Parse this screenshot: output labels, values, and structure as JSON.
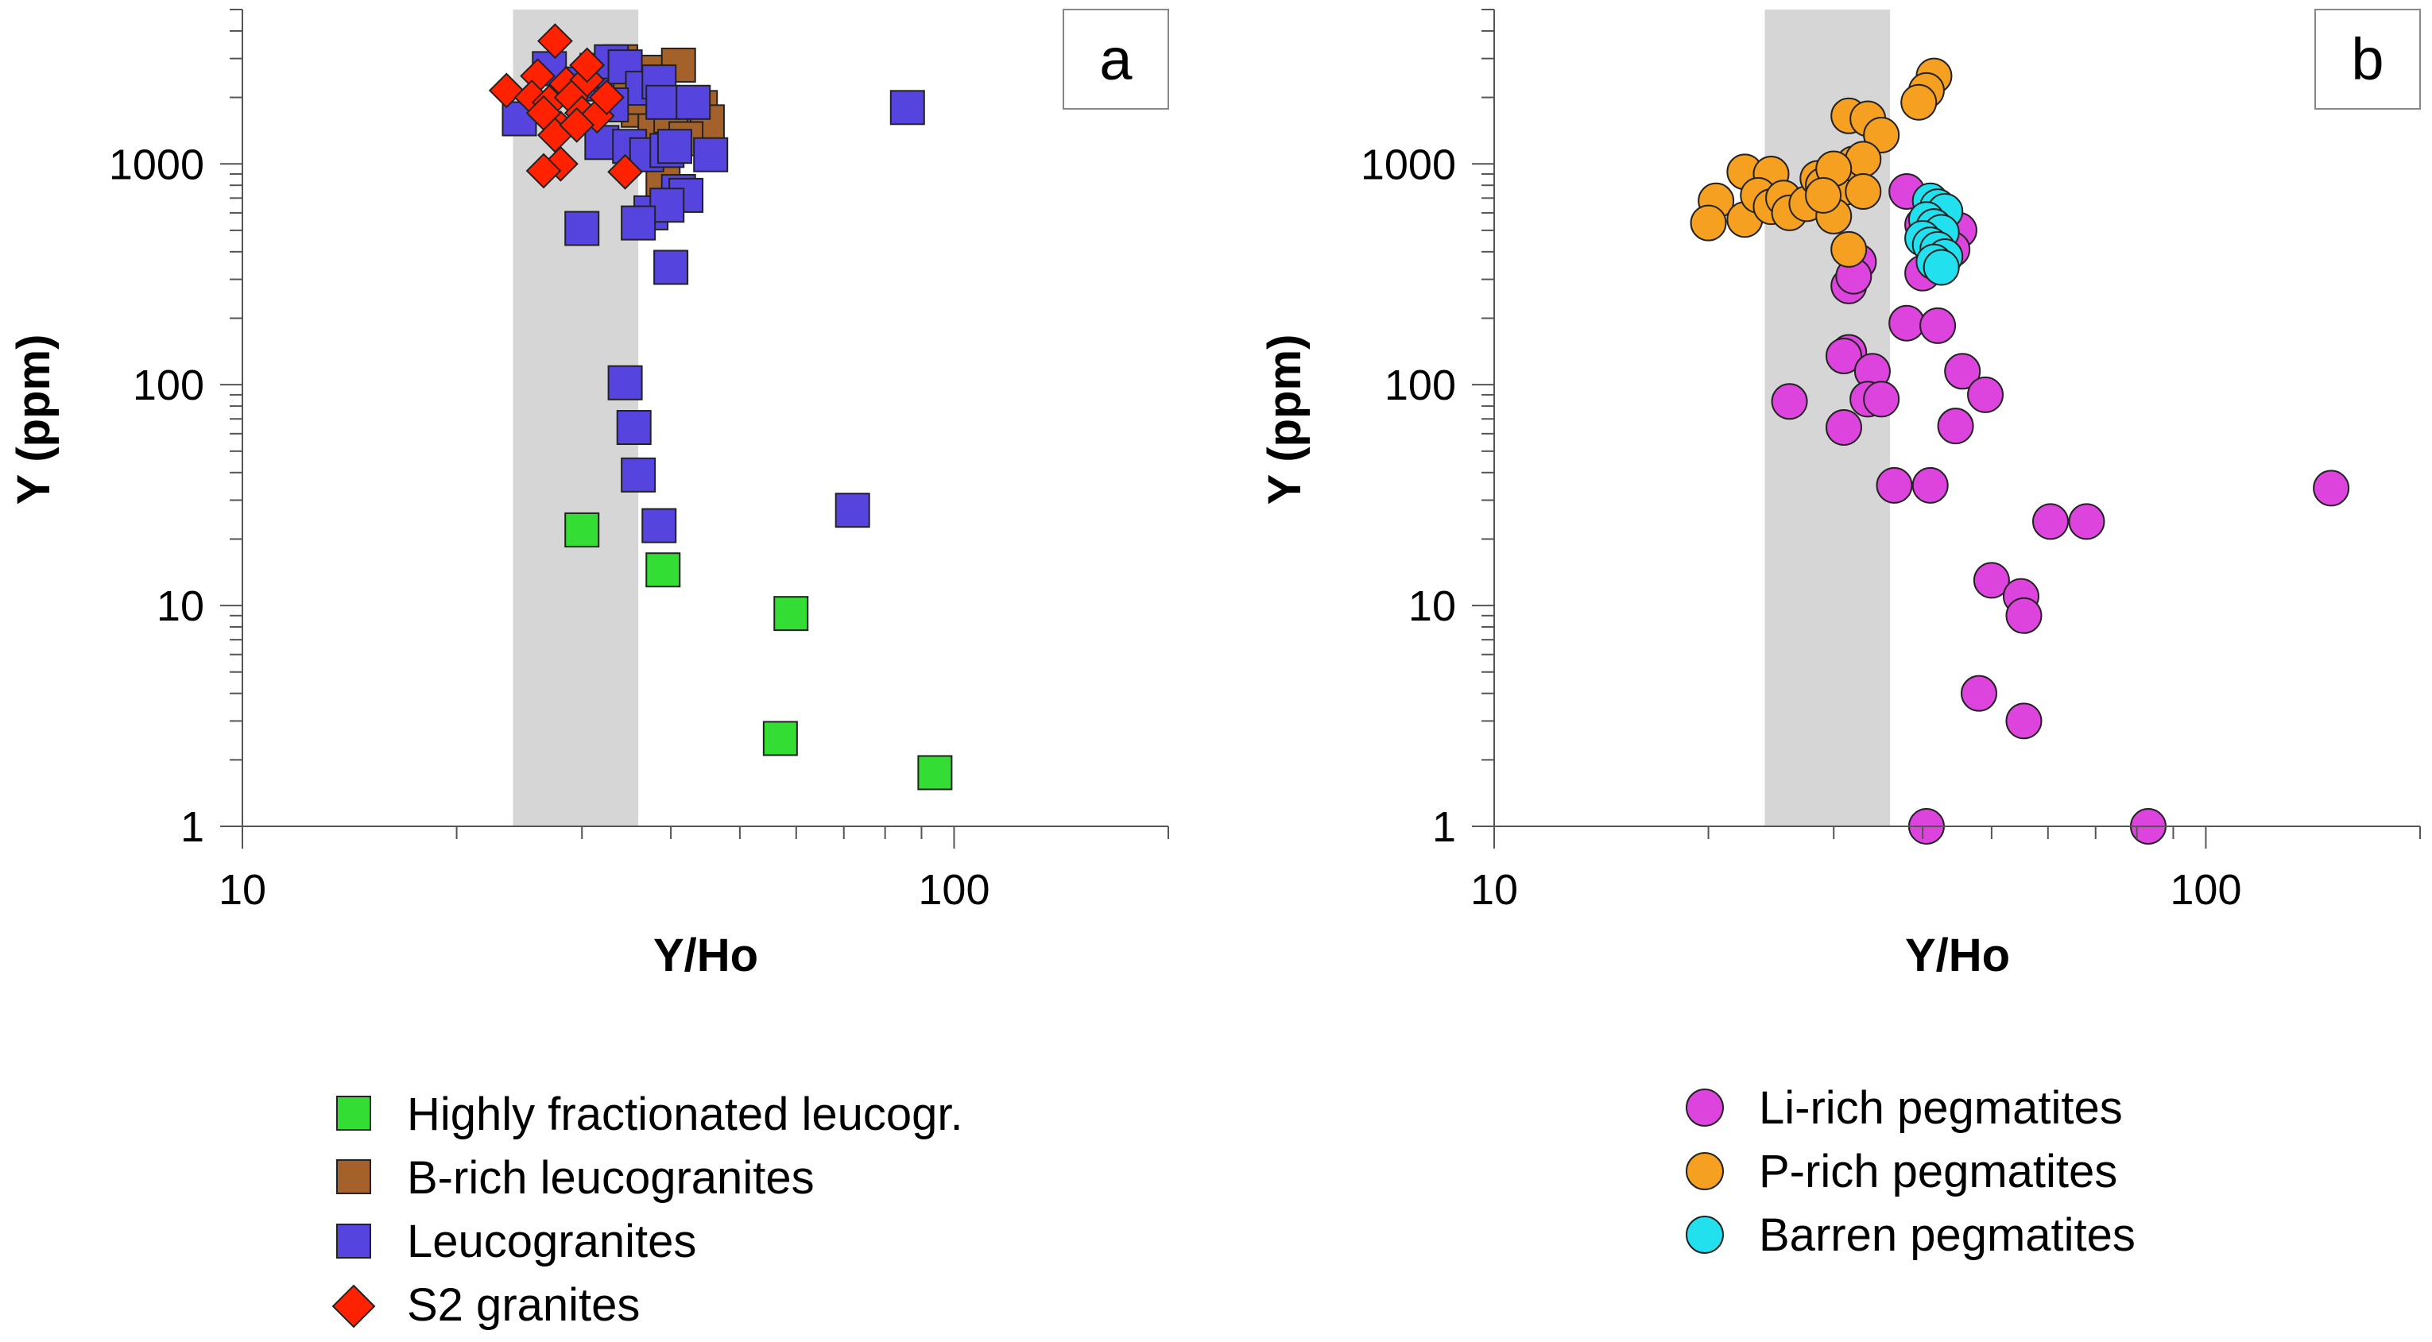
{
  "chart_data": [
    {
      "type": "scatter",
      "panel_label": "a",
      "xscale": "log",
      "yscale": "log",
      "xlabel": "Y/Ho",
      "ylabel": "Y (ppm)",
      "xlim": [
        10,
        200
      ],
      "ylim": [
        1,
        5000
      ],
      "xticks": [
        10,
        100
      ],
      "xtick_labels": [
        "10",
        "100"
      ],
      "yticks": [
        1,
        10,
        100,
        1000
      ],
      "ytick_labels": [
        "1",
        "10",
        "100",
        "1000"
      ],
      "shaded_band": {
        "x": [
          24,
          36
        ],
        "color": "#d6d6d6"
      },
      "series": [
        {
          "name": "Highly fractionated leucogr.",
          "marker": "square",
          "color": "#33dd33",
          "points": [
            [
              30,
              22
            ],
            [
              39,
              14.5
            ],
            [
              59,
              9.2
            ],
            [
              57,
              2.5
            ],
            [
              94,
              1.75
            ]
          ]
        },
        {
          "name": "B-rich leucogranites",
          "marker": "square",
          "color": "#a5612a",
          "points": [
            [
              34,
              2900
            ],
            [
              37,
              2600
            ],
            [
              41,
              2800
            ],
            [
              44,
              1800
            ],
            [
              45,
              1550
            ],
            [
              36,
              1750
            ],
            [
              38,
              1450
            ],
            [
              40,
              1650
            ],
            [
              33,
              2300
            ],
            [
              42,
              1300
            ],
            [
              39,
              850
            ],
            [
              35,
              2000
            ]
          ]
        },
        {
          "name": "Leucogranites",
          "marker": "square",
          "color": "#5544dd",
          "points": [
            [
              24.5,
              1600
            ],
            [
              27,
              2700
            ],
            [
              30,
              2300
            ],
            [
              31.5,
              2650
            ],
            [
              33,
              2900
            ],
            [
              34.5,
              2750
            ],
            [
              36.5,
              2200
            ],
            [
              38.5,
              2350
            ],
            [
              39,
              1900
            ],
            [
              43,
              1900
            ],
            [
              33,
              1850
            ],
            [
              32,
              1250
            ],
            [
              35,
              1200
            ],
            [
              37,
              1100
            ],
            [
              39.5,
              1150
            ],
            [
              40.5,
              1200
            ],
            [
              45.5,
              1100
            ],
            [
              41,
              750
            ],
            [
              42,
              720
            ],
            [
              37.5,
              600
            ],
            [
              39.5,
              650
            ],
            [
              30,
              510
            ],
            [
              36,
              540
            ],
            [
              40,
              340
            ],
            [
              86,
              1800
            ],
            [
              34.5,
              102
            ],
            [
              35.5,
              64
            ],
            [
              36,
              39
            ],
            [
              38.5,
              23
            ],
            [
              72,
              27
            ]
          ]
        },
        {
          "name": "S2 granites",
          "marker": "diamond",
          "color": "#ff2200",
          "points": [
            [
              23.5,
              2150
            ],
            [
              27.5,
              3600
            ],
            [
              26,
              2500
            ],
            [
              28.5,
              2300
            ],
            [
              30.5,
              2400
            ],
            [
              25.5,
              2000
            ],
            [
              27,
              1900
            ],
            [
              29,
              2000
            ],
            [
              30,
              1700
            ],
            [
              31.5,
              1650
            ],
            [
              28,
              1450
            ],
            [
              30.5,
              2800
            ],
            [
              26.5,
              1700
            ],
            [
              32.5,
              2000
            ],
            [
              27.5,
              1350
            ],
            [
              29.5,
              1500
            ],
            [
              28,
              1000
            ],
            [
              26.5,
              930
            ],
            [
              34.5,
              920
            ]
          ]
        }
      ]
    },
    {
      "type": "scatter",
      "panel_label": "b",
      "xscale": "log",
      "yscale": "log",
      "xlabel": "Y/Ho",
      "ylabel": "Y (ppm)",
      "xlim": [
        10,
        200
      ],
      "ylim": [
        1,
        5000
      ],
      "xticks": [
        10,
        100
      ],
      "xtick_labels": [
        "10",
        "100"
      ],
      "yticks": [
        1,
        10,
        100,
        1000
      ],
      "ytick_labels": [
        "1",
        "10",
        "100",
        "1000"
      ],
      "shaded_band": {
        "x": [
          24,
          36
        ],
        "color": "#d6d6d6"
      },
      "series": [
        {
          "name": "Li-rich pegmatites",
          "marker": "circle",
          "color": "#dd44dd",
          "points": [
            [
              38,
              750
            ],
            [
              40,
              530
            ],
            [
              45,
              500
            ],
            [
              44,
              410
            ],
            [
              40,
              320
            ],
            [
              32.5,
              360
            ],
            [
              31.5,
              280
            ],
            [
              32,
              310
            ],
            [
              38,
              190
            ],
            [
              42,
              185
            ],
            [
              31.5,
              140
            ],
            [
              31,
              135
            ],
            [
              34,
              115
            ],
            [
              45.5,
              115
            ],
            [
              49,
              90
            ],
            [
              26,
              84
            ],
            [
              33.5,
              86
            ],
            [
              35,
              86
            ],
            [
              31,
              64
            ],
            [
              44.5,
              65
            ],
            [
              36.5,
              35
            ],
            [
              41,
              35
            ],
            [
              60.5,
              24
            ],
            [
              68,
              24
            ],
            [
              150,
              34
            ],
            [
              50,
              13
            ],
            [
              55,
              11
            ],
            [
              55.5,
              9
            ],
            [
              48,
              4
            ],
            [
              55.5,
              3
            ],
            [
              40.5,
              1
            ],
            [
              83,
              1
            ]
          ]
        },
        {
          "name": "P-rich pegmatites",
          "marker": "circle",
          "color": "#f5a020",
          "points": [
            [
              41.5,
              2500
            ],
            [
              40.5,
              2150
            ],
            [
              39.5,
              1900
            ],
            [
              31.5,
              1650
            ],
            [
              33.5,
              1600
            ],
            [
              35,
              1350
            ],
            [
              20.5,
              680
            ],
            [
              20,
              540
            ],
            [
              22.5,
              920
            ],
            [
              24.5,
              900
            ],
            [
              22.5,
              560
            ],
            [
              23.5,
              720
            ],
            [
              24.5,
              640
            ],
            [
              25.5,
              700
            ],
            [
              26,
              600
            ],
            [
              27.5,
              660
            ],
            [
              28.5,
              860
            ],
            [
              29,
              800
            ],
            [
              31,
              780
            ],
            [
              32,
              1000
            ],
            [
              33,
              1050
            ],
            [
              30,
              950
            ],
            [
              30,
              580
            ],
            [
              29,
              720
            ],
            [
              33,
              750
            ],
            [
              31.5,
              410
            ]
          ]
        },
        {
          "name": "Barren pegmatites",
          "marker": "circle",
          "color": "#22e0ee",
          "points": [
            [
              41,
              680
            ],
            [
              42,
              640
            ],
            [
              43,
              610
            ],
            [
              40.5,
              560
            ],
            [
              41.5,
              520
            ],
            [
              42.5,
              490
            ],
            [
              40,
              460
            ],
            [
              41,
              430
            ],
            [
              42,
              410
            ],
            [
              43,
              380
            ],
            [
              41.5,
              360
            ],
            [
              42.5,
              340
            ]
          ]
        }
      ]
    }
  ]
}
